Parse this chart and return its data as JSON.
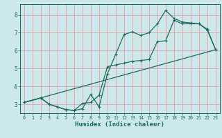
{
  "title": "",
  "xlabel": "Humidex (Indice chaleur)",
  "bg_color": "#cce8ea",
  "grid_color": "#e8a0a0",
  "line_color": "#1a6b5a",
  "xlim": [
    -0.5,
    23.5
  ],
  "ylim": [
    2.5,
    8.6
  ],
  "xticks": [
    0,
    1,
    2,
    3,
    4,
    5,
    6,
    7,
    8,
    9,
    10,
    11,
    12,
    13,
    14,
    15,
    16,
    17,
    18,
    19,
    20,
    21,
    22,
    23
  ],
  "yticks": [
    3,
    4,
    5,
    6,
    7,
    8
  ],
  "line1_x": [
    0,
    2,
    3,
    4,
    5,
    6,
    7,
    8,
    9,
    10,
    11,
    12,
    13,
    14,
    15,
    16,
    17,
    18,
    19,
    20,
    21,
    22,
    23
  ],
  "line1_y": [
    3.1,
    3.35,
    3.0,
    2.85,
    2.7,
    2.65,
    2.75,
    3.55,
    2.85,
    4.7,
    5.8,
    6.9,
    7.05,
    6.85,
    7.0,
    7.5,
    8.25,
    7.8,
    7.6,
    7.55,
    7.5,
    7.2,
    6.05
  ],
  "line2_x": [
    0,
    2,
    3,
    4,
    5,
    6,
    7,
    8,
    9,
    10,
    11,
    12,
    13,
    14,
    15,
    16,
    17,
    18,
    19,
    20,
    21,
    22,
    23
  ],
  "line2_y": [
    3.1,
    3.35,
    3.0,
    2.85,
    2.7,
    2.65,
    3.05,
    3.1,
    3.5,
    5.1,
    5.2,
    5.3,
    5.4,
    5.45,
    5.5,
    6.5,
    6.55,
    7.7,
    7.5,
    7.5,
    7.5,
    7.15,
    6.05
  ],
  "line3_x": [
    0,
    23
  ],
  "line3_y": [
    3.1,
    6.05
  ]
}
